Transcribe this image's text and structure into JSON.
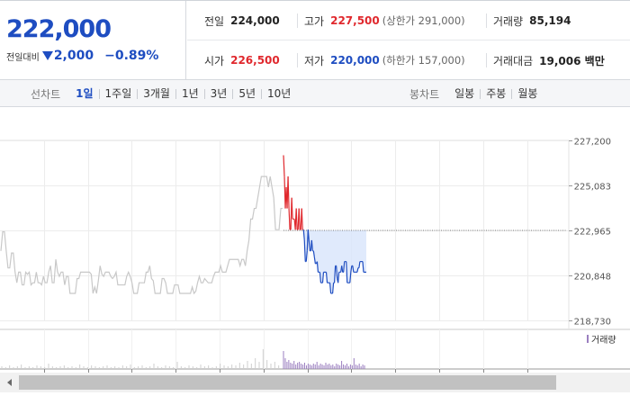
{
  "summary": {
    "current_price": "222,000",
    "change_label": "전일대비",
    "change_icon": "down-triangle-icon",
    "change_amount": "2,000",
    "change_rate": "−0.89%",
    "prev_close_label": "전일",
    "prev_close": "224,000",
    "high_label": "고가",
    "high": "227,500",
    "upper_limit": "(상한가 291,000)",
    "volume_label": "거래량",
    "volume": "85,194",
    "open_label": "시가",
    "open": "226,500",
    "low_label": "저가",
    "low": "220,000",
    "lower_limit": "(하한가 157,000)",
    "trade_value_label": "거래대금",
    "trade_value": "19,006 백만"
  },
  "tabs": {
    "line_label": "선차트",
    "line_tabs": [
      "1일",
      "1주일",
      "3개월",
      "1년",
      "3년",
      "5년",
      "10년"
    ],
    "active_line_tab": "1일",
    "candle_label": "봉차트",
    "candle_tabs": [
      "일봉",
      "주봉",
      "월봉"
    ]
  },
  "chart_data": {
    "type": "line",
    "title": "",
    "xlabel": "",
    "ylabel": "",
    "ylim": [
      218730,
      227200
    ],
    "y_ticks": [
      "227,200",
      "225,083",
      "222,965",
      "220,848",
      "218,730"
    ],
    "reference_price": 222965,
    "grid": true,
    "volume_legend": "거래량",
    "colors": {
      "previous_day": "#c8c8c8",
      "above_open": "#e0282d",
      "below_open": "#1e4dc1",
      "fill": "#dbe6fb",
      "volume": "#9b7fc0"
    },
    "series": [
      {
        "values": [
          222000,
          222900,
          222900,
          222000,
          221200,
          221200,
          221900,
          221900,
          221000,
          220500,
          221000,
          221000,
          220400,
          220400,
          221000,
          220900,
          221000,
          220400,
          220500,
          220500,
          221000,
          220500,
          220500,
          220400,
          220800,
          220500,
          220500,
          221000,
          221300,
          220500,
          220500,
          221600,
          221000,
          220800,
          221000,
          221000,
          220400,
          220800,
          220800,
          220000,
          220000,
          220000,
          220000,
          220700,
          220700,
          221000,
          221000,
          221000,
          221000,
          221000,
          221000,
          220900,
          220000,
          220300,
          220000,
          220600,
          221300,
          220900,
          220800,
          221000,
          221000,
          221000,
          220800,
          220700,
          220800,
          221000,
          220400,
          220400,
          220400,
          220400,
          220400,
          220800,
          221000,
          220800,
          220500,
          220000,
          220000,
          220000,
          220500,
          220500,
          220500,
          220500,
          221000,
          221000,
          221300,
          220700,
          220600,
          220000,
          220000,
          220000,
          220000,
          220700,
          220700,
          220500,
          220000,
          220000,
          220000,
          220000,
          220400,
          220400,
          220400,
          220000,
          220000,
          220000,
          220000,
          220000,
          220000,
          220000,
          220300,
          220000,
          220100,
          220500,
          220800,
          220500,
          220500,
          220700,
          220600,
          220500,
          220500,
          220500,
          220800,
          221000,
          221000,
          221000,
          221300,
          221000,
          221000,
          221000,
          221300,
          221600,
          221600,
          221600,
          221600,
          221600,
          221600,
          221300,
          221600,
          221600,
          221300,
          222000,
          222500,
          223500,
          223500,
          224000,
          224000,
          224500,
          225000,
          225500,
          225500,
          225500,
          225500,
          225000,
          225500,
          225000,
          224500,
          223000,
          223000,
          223000,
          224000,
          224000
        ]
      },
      {
        "values": [
          226500,
          225500,
          224000,
          225000,
          224000,
          225500,
          224000,
          223000,
          223000,
          224500,
          223500,
          223500,
          223500,
          223000,
          224000,
          223000,
          223000,
          224000,
          223000,
          223000,
          224000,
          223000,
          223000,
          222500,
          221500,
          221500,
          222000,
          223000,
          222500,
          222000,
          222000,
          222500,
          222000,
          222000,
          221700,
          221400,
          221400,
          221500,
          221000,
          221000,
          221000,
          220500,
          220500,
          220500,
          221000,
          221000,
          221000,
          221000,
          220500,
          220500,
          220500,
          220500,
          220000,
          220000,
          220000,
          220500,
          220500,
          221300,
          221300,
          220700,
          220500,
          221000,
          221000,
          221000,
          221300,
          221000,
          221000,
          221500,
          221500,
          221500,
          220500,
          220500,
          220500,
          220500,
          221000,
          221300,
          221300,
          221000,
          221000,
          221000,
          221000,
          221000,
          221200,
          221200,
          221500,
          221500,
          221500,
          221500,
          221000,
          221000,
          221000,
          221000
        ]
      }
    ]
  }
}
